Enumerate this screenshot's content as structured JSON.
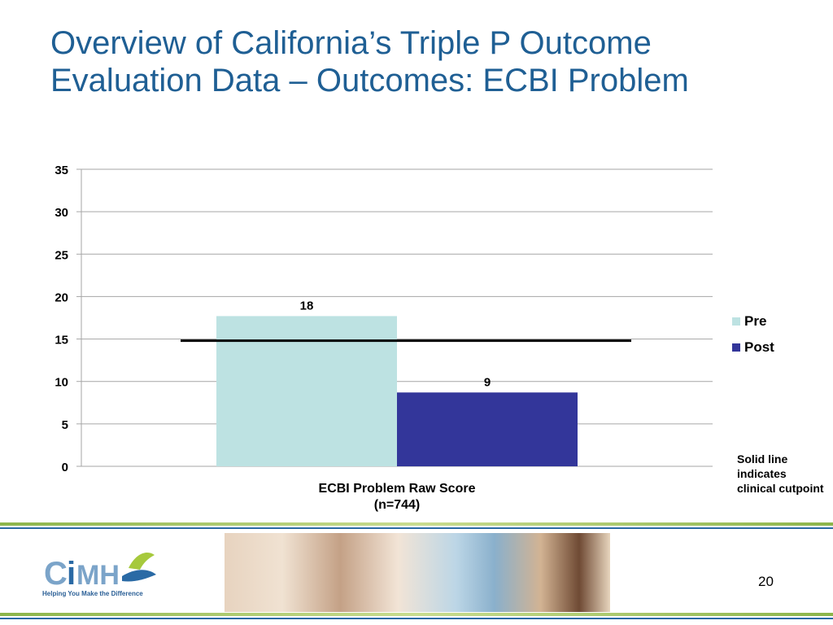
{
  "slide": {
    "title_line1": "Overview of California’s Triple P Outcome",
    "title_line2": "Evaluation Data – Outcomes: ECBI Problem",
    "note": "Solid line indicates clinical cutpoint",
    "page_number": "20",
    "logo": {
      "name": "CiMH",
      "tagline": "Helping You Make the Difference"
    }
  },
  "chart_data": {
    "type": "bar",
    "categories": [
      "ECBI Problem Raw Score (n=744)"
    ],
    "category_lines": [
      "ECBI Problem Raw Score",
      "(n=744)"
    ],
    "series": [
      {
        "name": "Pre",
        "values": [
          17.7
        ],
        "label": "18",
        "color": "#bde2e2"
      },
      {
        "name": "Post",
        "values": [
          8.7
        ],
        "label": "9",
        "color": "#33369a"
      }
    ],
    "reference_line": {
      "value": 14.8
    },
    "ylim": [
      0,
      35
    ],
    "yticks": [
      0,
      5,
      10,
      15,
      20,
      25,
      30,
      35
    ],
    "grid": true,
    "legend": "right"
  }
}
